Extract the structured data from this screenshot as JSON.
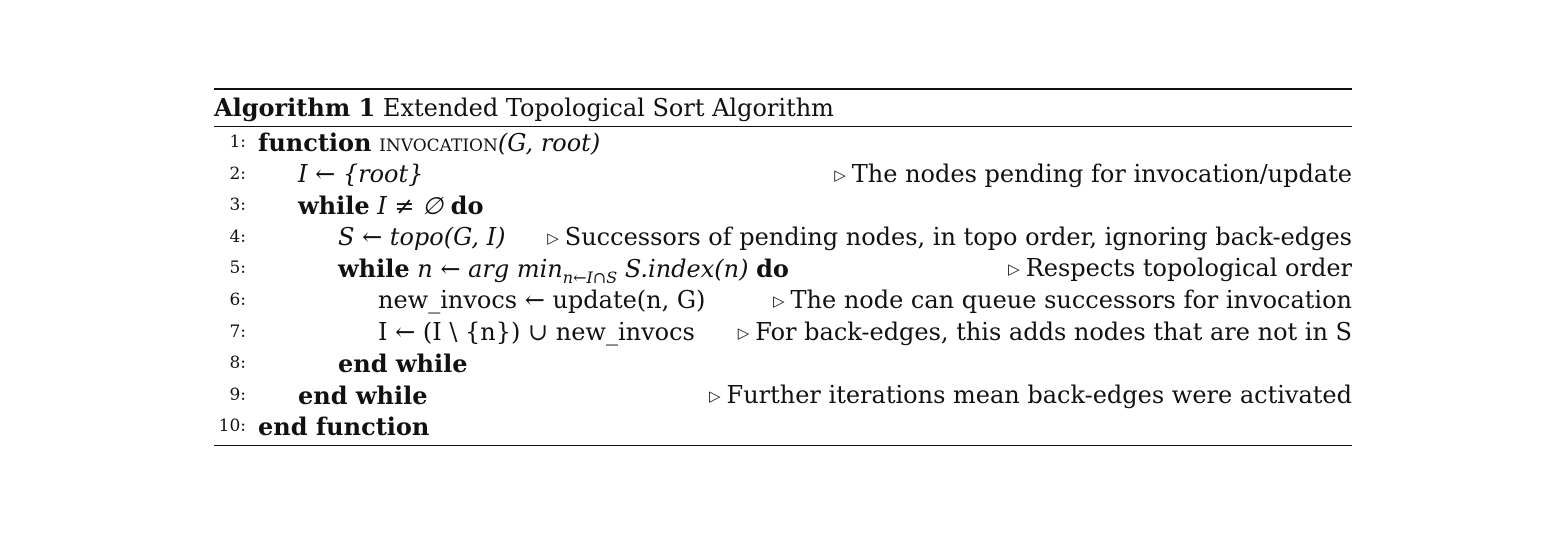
{
  "algorithm": {
    "label": "Algorithm 1",
    "title": "Extended Topological Sort Algorithm",
    "comment_marker": "▷",
    "lines": [
      {
        "number": "1:",
        "kw_start": "function",
        "name": "invocation",
        "args": "(G, root)",
        "comment": ""
      },
      {
        "number": "2:",
        "code": "I ← {root}",
        "comment": "The nodes pending for invocation/update"
      },
      {
        "number": "3:",
        "kw_start": "while",
        "code": "I ≠ ∅",
        "kw_end": "do",
        "comment": ""
      },
      {
        "number": "4:",
        "code": "S ← topo(G, I)",
        "comment": "Successors of pending nodes, in topo order, ignoring back-edges"
      },
      {
        "number": "5:",
        "kw_start": "while",
        "code_pre": "n ← arg min",
        "subscript": "n←I∩S",
        "code_post": "S.index(n)",
        "kw_end": "do",
        "comment": "Respects topological order"
      },
      {
        "number": "6:",
        "code": "new_invocs ← update(n, G)",
        "comment": "The node can queue successors for invocation"
      },
      {
        "number": "7:",
        "code": "I ← (I \\ {n}) ∪ new_invocs",
        "comment": "For back-edges, this adds nodes that are not in S"
      },
      {
        "number": "8:",
        "kw_start": "end while",
        "comment": ""
      },
      {
        "number": "9:",
        "kw_start": "end while",
        "comment": "Further iterations mean back-edges were activated"
      },
      {
        "number": "10:",
        "kw_start": "end function",
        "comment": ""
      }
    ]
  }
}
